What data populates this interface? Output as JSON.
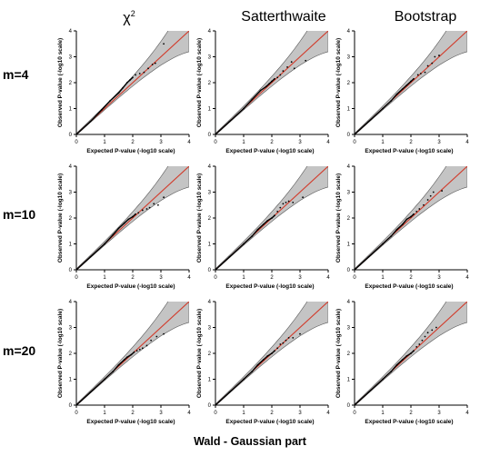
{
  "figure": {
    "footer": "Wald - Gaussian part",
    "columns": [
      {
        "base": "χ",
        "sup": "2"
      },
      {
        "base": "Satterthwaite",
        "sup": ""
      },
      {
        "base": "Bootstrap",
        "sup": ""
      }
    ],
    "rows": [
      "m=4",
      "m=10",
      "m=20"
    ],
    "colors": {
      "reference_line": "#d23a2a",
      "band_fill": "#c4c4c4",
      "band_edge": "#555555",
      "points": "#000000"
    }
  },
  "chart_data": [
    {
      "type": "scatter",
      "panel": "m=4 / χ2",
      "xlabel": "Expected P-value (-log10 scale)",
      "ylabel": "Observed P-value (-log10 scale)",
      "xlim": [
        0,
        4
      ],
      "ylim": [
        0,
        4
      ],
      "xticks": [
        "0",
        "1",
        "2",
        "3",
        "4"
      ],
      "yticks": [
        "0",
        "1",
        "2",
        "3",
        "4"
      ],
      "reference_line": "y = x",
      "confidence_band": true,
      "points": [
        [
          0.5,
          0.5
        ],
        [
          0.9,
          0.95
        ],
        [
          1.2,
          1.3
        ],
        [
          1.5,
          1.6
        ],
        [
          1.65,
          1.8
        ],
        [
          1.8,
          2.0
        ],
        [
          1.9,
          2.1
        ],
        [
          2.0,
          2.2
        ],
        [
          2.1,
          2.3
        ],
        [
          2.25,
          2.35
        ],
        [
          2.4,
          2.4
        ],
        [
          2.55,
          2.55
        ],
        [
          2.7,
          2.7
        ],
        [
          2.8,
          2.75
        ],
        [
          3.1,
          3.5
        ]
      ]
    },
    {
      "type": "scatter",
      "panel": "m=4 / Satterthwaite",
      "xlabel": "Expected P-value (-log10 scale)",
      "ylabel": "Observed P-value (-log10 scale)",
      "xlim": [
        0,
        4
      ],
      "ylim": [
        0,
        4
      ],
      "xticks": [
        "0",
        "1",
        "2",
        "3",
        "4"
      ],
      "yticks": [
        "0",
        "1",
        "2",
        "3",
        "4"
      ],
      "reference_line": "y = x",
      "confidence_band": true,
      "points": [
        [
          0.5,
          0.5
        ],
        [
          1.0,
          1.0
        ],
        [
          1.3,
          1.35
        ],
        [
          1.6,
          1.7
        ],
        [
          1.8,
          1.85
        ],
        [
          1.9,
          1.95
        ],
        [
          2.0,
          2.05
        ],
        [
          2.1,
          2.15
        ],
        [
          2.2,
          2.2
        ],
        [
          2.3,
          2.3
        ],
        [
          2.4,
          2.45
        ],
        [
          2.55,
          2.6
        ],
        [
          2.7,
          2.8
        ],
        [
          2.8,
          2.55
        ],
        [
          3.2,
          2.85
        ]
      ]
    },
    {
      "type": "scatter",
      "panel": "m=4 / Bootstrap",
      "xlabel": "Expected P-value (-log10 scale)",
      "ylabel": "Observed P-value (-log10 scale)",
      "xlim": [
        0,
        4
      ],
      "ylim": [
        0,
        4
      ],
      "xticks": [
        "0",
        "1",
        "2",
        "3",
        "4"
      ],
      "yticks": [
        "0",
        "1",
        "2",
        "3",
        "4"
      ],
      "reference_line": "y = x",
      "confidence_band": true,
      "points": [
        [
          0.5,
          0.5
        ],
        [
          1.0,
          1.0
        ],
        [
          1.3,
          1.3
        ],
        [
          1.5,
          1.55
        ],
        [
          1.7,
          1.75
        ],
        [
          1.85,
          1.9
        ],
        [
          2.0,
          2.05
        ],
        [
          2.1,
          2.15
        ],
        [
          2.25,
          2.3
        ],
        [
          2.35,
          2.35
        ],
        [
          2.5,
          2.4
        ],
        [
          2.6,
          2.65
        ],
        [
          2.75,
          2.75
        ],
        [
          2.85,
          3.0
        ],
        [
          3.0,
          3.05
        ]
      ]
    },
    {
      "type": "scatter",
      "panel": "m=10 / χ2",
      "xlabel": "Expected P-value (-log10 scale)",
      "ylabel": "Observed P-value (-log10 scale)",
      "xlim": [
        0,
        4
      ],
      "ylim": [
        0,
        4
      ],
      "xticks": [
        "0",
        "1",
        "2",
        "3",
        "4"
      ],
      "yticks": [
        "0",
        "1",
        "2",
        "3",
        "4"
      ],
      "reference_line": "y = x",
      "confidence_band": true,
      "points": [
        [
          0.5,
          0.5
        ],
        [
          1.0,
          1.0
        ],
        [
          1.3,
          1.35
        ],
        [
          1.5,
          1.6
        ],
        [
          1.7,
          1.8
        ],
        [
          1.85,
          1.95
        ],
        [
          2.0,
          2.05
        ],
        [
          2.1,
          2.15
        ],
        [
          2.2,
          2.2
        ],
        [
          2.35,
          2.3
        ],
        [
          2.5,
          2.35
        ],
        [
          2.6,
          2.4
        ],
        [
          2.75,
          2.55
        ],
        [
          2.9,
          2.5
        ],
        [
          3.1,
          2.8
        ]
      ]
    },
    {
      "type": "scatter",
      "panel": "m=10 / Satterthwaite",
      "xlabel": "Expected P-value (-log10 scale)",
      "ylabel": "Observed P-value (-log10 scale)",
      "xlim": [
        0,
        4
      ],
      "ylim": [
        0,
        4
      ],
      "xticks": [
        "0",
        "1",
        "2",
        "3",
        "4"
      ],
      "yticks": [
        "0",
        "1",
        "2",
        "3",
        "4"
      ],
      "reference_line": "y = x",
      "confidence_band": true,
      "points": [
        [
          0.5,
          0.5
        ],
        [
          1.0,
          1.0
        ],
        [
          1.3,
          1.3
        ],
        [
          1.5,
          1.55
        ],
        [
          1.7,
          1.75
        ],
        [
          1.85,
          1.9
        ],
        [
          2.0,
          2.0
        ],
        [
          2.1,
          2.1
        ],
        [
          2.2,
          2.25
        ],
        [
          2.3,
          2.4
        ],
        [
          2.4,
          2.55
        ],
        [
          2.5,
          2.6
        ],
        [
          2.6,
          2.65
        ],
        [
          2.75,
          2.6
        ],
        [
          3.1,
          2.8
        ]
      ]
    },
    {
      "type": "scatter",
      "panel": "m=10 / Bootstrap",
      "xlabel": "Expected P-value (-log10 scale)",
      "ylabel": "Observed P-value (-log10 scale)",
      "xlim": [
        0,
        4
      ],
      "ylim": [
        0,
        4
      ],
      "xticks": [
        "0",
        "1",
        "2",
        "3",
        "4"
      ],
      "yticks": [
        "0",
        "1",
        "2",
        "3",
        "4"
      ],
      "reference_line": "y = x",
      "confidence_band": true,
      "points": [
        [
          0.5,
          0.5
        ],
        [
          1.0,
          1.0
        ],
        [
          1.3,
          1.3
        ],
        [
          1.5,
          1.55
        ],
        [
          1.7,
          1.75
        ],
        [
          1.85,
          1.95
        ],
        [
          2.0,
          2.05
        ],
        [
          2.1,
          2.15
        ],
        [
          2.2,
          2.25
        ],
        [
          2.3,
          2.35
        ],
        [
          2.45,
          2.5
        ],
        [
          2.6,
          2.7
        ],
        [
          2.7,
          2.85
        ],
        [
          2.8,
          3.0
        ],
        [
          3.1,
          3.05
        ]
      ]
    },
    {
      "type": "scatter",
      "panel": "m=20 / χ2",
      "xlabel": "Expected P-value (-log10 scale)",
      "ylabel": "Observed P-value (-log10 scale)",
      "xlim": [
        0,
        4
      ],
      "ylim": [
        0,
        4
      ],
      "xticks": [
        "0",
        "1",
        "2",
        "3",
        "4"
      ],
      "yticks": [
        "0",
        "1",
        "2",
        "3",
        "4"
      ],
      "reference_line": "y = x",
      "confidence_band": true,
      "points": [
        [
          0.5,
          0.5
        ],
        [
          1.0,
          1.0
        ],
        [
          1.3,
          1.3
        ],
        [
          1.5,
          1.55
        ],
        [
          1.7,
          1.75
        ],
        [
          1.8,
          1.85
        ],
        [
          1.95,
          1.95
        ],
        [
          2.05,
          2.05
        ],
        [
          2.15,
          2.1
        ],
        [
          2.25,
          2.15
        ],
        [
          2.35,
          2.2
        ],
        [
          2.5,
          2.3
        ],
        [
          2.65,
          2.5
        ],
        [
          2.85,
          2.65
        ],
        [
          3.1,
          2.75
        ]
      ]
    },
    {
      "type": "scatter",
      "panel": "m=20 / Satterthwaite",
      "xlabel": "Expected P-value (-log10 scale)",
      "ylabel": "Observed P-value (-log10 scale)",
      "xlim": [
        0,
        4
      ],
      "ylim": [
        0,
        4
      ],
      "xticks": [
        "0",
        "1",
        "2",
        "3",
        "4"
      ],
      "yticks": [
        "0",
        "1",
        "2",
        "3",
        "4"
      ],
      "reference_line": "y = x",
      "confidence_band": true,
      "points": [
        [
          0.5,
          0.5
        ],
        [
          1.0,
          1.0
        ],
        [
          1.3,
          1.3
        ],
        [
          1.5,
          1.55
        ],
        [
          1.7,
          1.75
        ],
        [
          1.85,
          1.9
        ],
        [
          2.0,
          2.0
        ],
        [
          2.1,
          2.1
        ],
        [
          2.2,
          2.2
        ],
        [
          2.3,
          2.35
        ],
        [
          2.4,
          2.4
        ],
        [
          2.5,
          2.5
        ],
        [
          2.6,
          2.6
        ],
        [
          2.75,
          2.6
        ],
        [
          3.0,
          2.75
        ]
      ]
    },
    {
      "type": "scatter",
      "panel": "m=20 / Bootstrap",
      "xlabel": "Expected P-value (-log10 scale)",
      "ylabel": "Observed P-value (-log10 scale)",
      "xlim": [
        0,
        4
      ],
      "ylim": [
        0,
        4
      ],
      "xticks": [
        "0",
        "1",
        "2",
        "3",
        "4"
      ],
      "yticks": [
        "0",
        "1",
        "2",
        "3",
        "4"
      ],
      "reference_line": "y = x",
      "confidence_band": true,
      "points": [
        [
          0.5,
          0.5
        ],
        [
          1.0,
          1.0
        ],
        [
          1.3,
          1.3
        ],
        [
          1.5,
          1.55
        ],
        [
          1.7,
          1.75
        ],
        [
          1.85,
          1.9
        ],
        [
          2.0,
          2.0
        ],
        [
          2.1,
          2.1
        ],
        [
          2.2,
          2.25
        ],
        [
          2.3,
          2.35
        ],
        [
          2.4,
          2.5
        ],
        [
          2.5,
          2.65
        ],
        [
          2.6,
          2.8
        ],
        [
          2.75,
          2.9
        ],
        [
          2.9,
          3.0
        ]
      ]
    }
  ]
}
